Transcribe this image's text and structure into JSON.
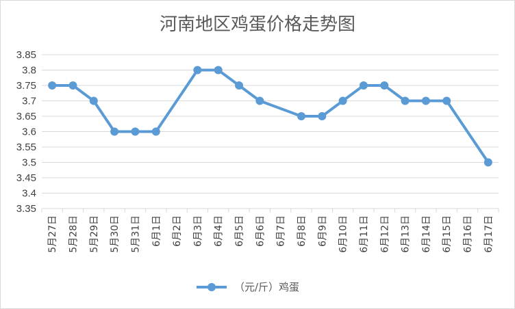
{
  "chart_data": {
    "type": "line",
    "title": "河南地区鸡蛋价格走势图",
    "xlabel": "",
    "ylabel": "",
    "categories": [
      "5月27日",
      "5月28日",
      "5月29日",
      "5月30日",
      "5月31日",
      "6月1日",
      "6月2日",
      "6月3日",
      "6月4日",
      "6月5日",
      "6月6日",
      "6月7日",
      "6月8日",
      "6月9日",
      "6月10日",
      "6月11日",
      "6月12日",
      "6月13日",
      "6月14日",
      "6月15日",
      "6月16日",
      "6月17日"
    ],
    "series": [
      {
        "name": "（元/斤）鸡蛋",
        "values": [
          3.75,
          3.75,
          3.7,
          3.6,
          3.6,
          3.6,
          null,
          3.8,
          3.8,
          3.75,
          3.7,
          null,
          3.65,
          3.65,
          3.7,
          3.75,
          3.75,
          3.7,
          3.7,
          3.7,
          null,
          3.5
        ]
      }
    ],
    "ylim": [
      3.35,
      3.85
    ],
    "yticks": [
      "3.35",
      "3.4",
      "3.45",
      "3.5",
      "3.55",
      "3.6",
      "3.65",
      "3.7",
      "3.75",
      "3.8",
      "3.85"
    ],
    "grid": true,
    "legend": "bottom",
    "line_color": "#5b9bd5",
    "grid_color": "#d9d9d9"
  }
}
